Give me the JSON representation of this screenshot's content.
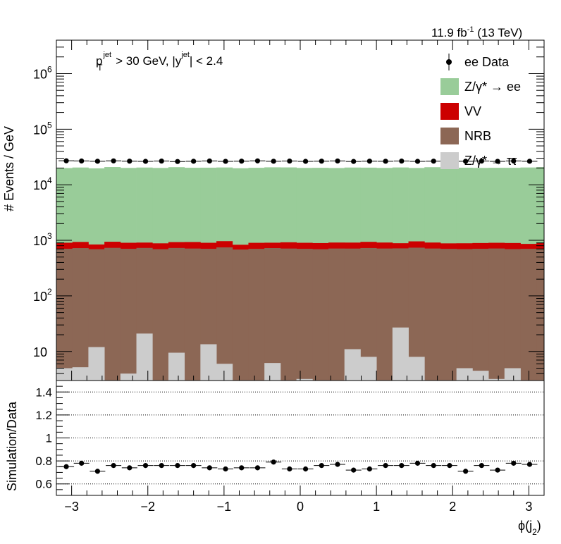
{
  "chart_data": [
    {
      "type": "bar",
      "panel": "main",
      "ylabel": "# Events / GeV",
      "yscale": "log",
      "ylim": [
        3,
        4000000
      ],
      "xlim": [
        -3.2,
        3.2
      ],
      "lumi_label": "11.9 fb",
      "lumi_sup": "-1",
      "energy_label": "(13 TeV)",
      "cut_text": {
        "p": "p",
        "T": "T",
        "jet": "jet",
        "gt": " > 30 GeV,  |y",
        "lt": "| < 2.4"
      },
      "legend_position": "top-right",
      "legend": [
        {
          "kind": "marker",
          "label": "ee Data",
          "color": "#000000"
        },
        {
          "kind": "box",
          "label": "Z/γ* → ee",
          "color": "#99cc99"
        },
        {
          "kind": "box",
          "label": "VV",
          "color": "#cc0000"
        },
        {
          "kind": "box",
          "label": "NRB",
          "color": "#8c6755"
        },
        {
          "kind": "box",
          "label": "Z/γ* → ττ",
          "color": "#cccccc"
        }
      ],
      "y_tick_labels": [
        "10",
        "10",
        "10",
        "10",
        "10",
        "10"
      ],
      "y_tick_exps": [
        "",
        "2",
        "3",
        "4",
        "5",
        "6"
      ],
      "bin_edges": [
        -3.2,
        -2.99,
        -2.78,
        -2.57,
        -2.36,
        -2.15,
        -1.94,
        -1.73,
        -1.52,
        -1.31,
        -1.1,
        -0.89,
        -0.68,
        -0.47,
        -0.26,
        -0.05,
        0.16,
        0.37,
        0.58,
        0.79,
        1.0,
        1.21,
        1.42,
        1.63,
        1.84,
        2.05,
        2.26,
        2.47,
        2.68,
        2.89,
        3.1,
        3.2
      ],
      "series": [
        {
          "name": "Z/γ* → ττ",
          "color": "#cccccc",
          "values": [
            5,
            5.2,
            12,
            3,
            4,
            21,
            3,
            9.5,
            2.5,
            13.5,
            6,
            2.5,
            2.2,
            6.2,
            2,
            3.2,
            2.5,
            2.5,
            11,
            8,
            2.8,
            27,
            8,
            2.7,
            2,
            5,
            4.5,
            3.2,
            5,
            2.5,
            2.5
          ]
        },
        {
          "name": "NRB",
          "color": "#8c6755",
          "values": [
            700,
            720,
            680,
            730,
            700,
            710,
            690,
            720,
            710,
            690,
            740,
            680,
            700,
            720,
            710,
            700,
            690,
            710,
            700,
            720,
            710,
            690,
            730,
            710,
            700,
            690,
            700,
            710,
            690,
            700,
            700
          ]
        },
        {
          "name": "VV",
          "color": "#cc0000",
          "values": [
            200,
            210,
            150,
            210,
            200,
            180,
            190,
            200,
            220,
            200,
            220,
            150,
            200,
            180,
            210,
            200,
            200,
            200,
            200,
            210,
            200,
            170,
            220,
            200,
            180,
            190,
            190,
            190,
            200,
            160,
            200
          ]
        },
        {
          "name": "Z/γ* → ee",
          "color": "#99cc99",
          "values": [
            19100,
            19500,
            18900,
            19900,
            19200,
            19500,
            19200,
            19800,
            19300,
            19400,
            19500,
            19000,
            19300,
            19700,
            19600,
            19200,
            19300,
            19100,
            19500,
            19400,
            19200,
            19600,
            19100,
            19800,
            19500,
            19400,
            19200,
            19300,
            19300,
            19600,
            19900
          ]
        }
      ],
      "data_points": {
        "name": "ee Data",
        "x": [
          -3.07,
          -2.87,
          -2.66,
          -2.45,
          -2.24,
          -2.03,
          -1.82,
          -1.61,
          -1.4,
          -1.19,
          -0.98,
          -0.77,
          -0.56,
          -0.35,
          -0.14,
          0.07,
          0.28,
          0.49,
          0.7,
          0.91,
          1.12,
          1.33,
          1.54,
          1.75,
          1.96,
          2.17,
          2.38,
          2.59,
          2.8,
          3.01
        ],
        "y": [
          27000,
          26800,
          26500,
          26900,
          26600,
          26400,
          26700,
          26200,
          26500,
          26800,
          26400,
          26600,
          26900,
          26500,
          26700,
          26400,
          26600,
          26800,
          26300,
          26600,
          26500,
          26700,
          26400,
          26600,
          26300,
          26500,
          26700,
          26400,
          26800,
          26500
        ]
      }
    },
    {
      "type": "scatter",
      "panel": "ratio",
      "ylabel": "Simulation/Data",
      "xlabel": "ϕ(j",
      "xlabel_sub": "2",
      "xlabel_close": ")",
      "ylim": [
        0.5,
        1.5
      ],
      "xlim": [
        -3.2,
        3.2
      ],
      "grid": "horizontal dotted",
      "y_ticks": [
        0.6,
        0.8,
        1,
        1.2,
        1.4
      ],
      "y_tick_labels": [
        "0.6",
        "0.8",
        "1",
        "1.2",
        "1.4"
      ],
      "x_ticks": [
        -3,
        -2,
        -1,
        0,
        1,
        2,
        3
      ],
      "x_tick_labels": [
        "−3",
        "−2",
        "−1",
        "0",
        "1",
        "2",
        "3"
      ],
      "x": [
        -3.07,
        -2.87,
        -2.66,
        -2.45,
        -2.24,
        -2.03,
        -1.82,
        -1.61,
        -1.4,
        -1.19,
        -0.98,
        -0.77,
        -0.56,
        -0.35,
        -0.14,
        0.07,
        0.28,
        0.49,
        0.7,
        0.91,
        1.12,
        1.33,
        1.54,
        1.75,
        1.96,
        2.17,
        2.38,
        2.59,
        2.8,
        3.01
      ],
      "y": [
        0.75,
        0.78,
        0.71,
        0.76,
        0.74,
        0.76,
        0.76,
        0.76,
        0.76,
        0.74,
        0.73,
        0.74,
        0.74,
        0.79,
        0.73,
        0.73,
        0.76,
        0.77,
        0.72,
        0.73,
        0.76,
        0.76,
        0.78,
        0.76,
        0.76,
        0.71,
        0.76,
        0.72,
        0.78,
        0.77
      ]
    }
  ]
}
